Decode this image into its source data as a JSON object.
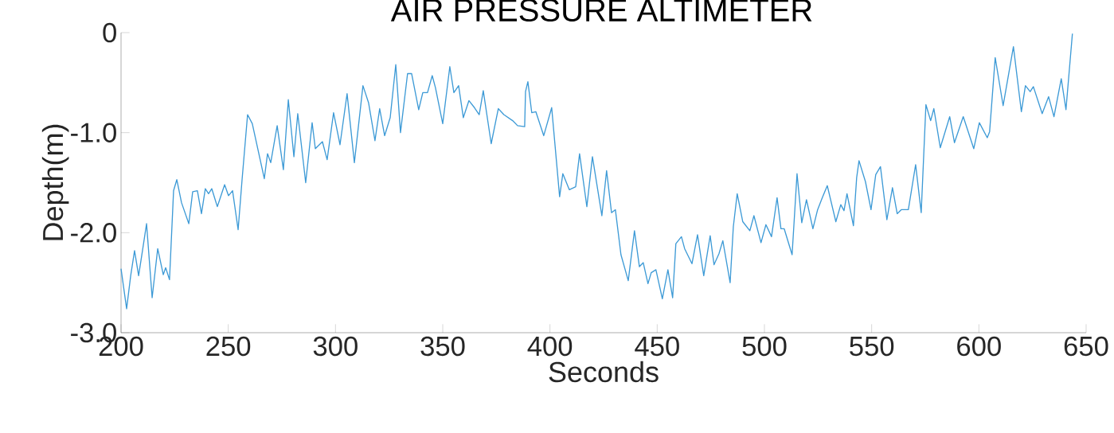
{
  "chart_data": {
    "type": "line",
    "title": "AIR PRESSURE ALTIMETER",
    "xlabel": "Seconds",
    "ylabel": "Depth(m)",
    "xlim": [
      200,
      650
    ],
    "ylim": [
      -3,
      0
    ],
    "xticks": [
      200,
      250,
      300,
      350,
      400,
      450,
      500,
      550,
      600,
      650
    ],
    "yticks": [
      {
        "value": -3,
        "label": "-3.0"
      },
      {
        "value": -2,
        "label": "-2.0"
      },
      {
        "value": -1,
        "label": "-1.0"
      },
      0
    ],
    "grid": false,
    "marker": "none",
    "line_style": "solid",
    "series": [
      {
        "color": "#3d9ad6",
        "x": [
          200,
          202.6,
          204.5,
          206.3,
          208.2,
          210.0,
          211.9,
          214.5,
          217.1,
          219.7,
          220.8,
          222.6,
          224.5,
          226.0,
          228.2,
          231.6,
          233.4,
          235.6,
          237.5,
          239.3,
          240.8,
          242.3,
          244.9,
          248.3,
          250.1,
          252.0,
          254.6,
          256.4,
          259.0,
          261.2,
          266.8,
          268.3,
          269.8,
          272.8,
          275.7,
          278.0,
          280.6,
          282.4,
          286.1,
          289.1,
          290.6,
          293.9,
          296.1,
          299.1,
          302.1,
          305.4,
          308.8,
          312.8,
          315.4,
          318.4,
          320.6,
          322.9,
          325.5,
          328.1,
          330.3,
          333.6,
          335.5,
          338.8,
          340.7,
          342.9,
          345.1,
          346.6,
          350.0,
          353.3,
          355.2,
          357.4,
          359.6,
          362.2,
          364.8,
          367.0,
          368.9,
          372.6,
          375.9,
          378.5,
          382.6,
          384.9,
          388.2,
          388.6,
          389.7,
          391.5,
          393.4,
          397.1,
          400.8,
          404.5,
          406.0,
          409.0,
          412.0,
          413.8,
          417.2,
          419.8,
          424.2,
          426.4,
          428.7,
          430.5,
          433.1,
          436.5,
          439.4,
          441.7,
          443.5,
          445.7,
          447.2,
          449.4,
          452.4,
          455.0,
          457.2,
          458.7,
          461.3,
          462.8,
          466.2,
          468.8,
          471.7,
          474.7,
          476.5,
          478.8,
          480.6,
          484.0,
          485.5,
          487.3,
          489.9,
          493.2,
          495.1,
          498.4,
          500.7,
          503.3,
          505.9,
          507.7,
          509.2,
          512.9,
          515.2,
          517.4,
          519.6,
          522.6,
          524.8,
          527.0,
          529.3,
          533.3,
          535.6,
          537.1,
          538.5,
          541.5,
          543.0,
          544.1,
          547.1,
          549.7,
          551.9,
          554.1,
          557.1,
          559.7,
          561.9,
          563.8,
          567.1,
          570.5,
          573.1,
          575.3,
          577.5,
          579.0,
          582.0,
          586.4,
          588.6,
          592.7,
          597.6,
          600.2,
          603.9,
          605.0,
          607.6,
          611.3,
          616.1,
          619.8,
          621.7,
          623.9,
          625.4,
          629.5,
          632.5,
          635.0,
          638.4,
          640.6,
          643.6
        ],
        "values": [
          -2.36,
          -2.76,
          -2.43,
          -2.18,
          -2.43,
          -2.18,
          -1.91,
          -2.65,
          -2.16,
          -2.42,
          -2.35,
          -2.47,
          -1.58,
          -1.47,
          -1.7,
          -1.91,
          -1.59,
          -1.58,
          -1.81,
          -1.56,
          -1.61,
          -1.56,
          -1.74,
          -1.52,
          -1.63,
          -1.58,
          -1.97,
          -1.48,
          -0.82,
          -0.91,
          -1.46,
          -1.21,
          -1.3,
          -0.93,
          -1.37,
          -0.67,
          -1.24,
          -0.81,
          -1.5,
          -0.9,
          -1.16,
          -1.09,
          -1.27,
          -0.8,
          -1.12,
          -0.61,
          -1.3,
          -0.53,
          -0.7,
          -1.08,
          -0.76,
          -1.03,
          -0.85,
          -0.32,
          -1.0,
          -0.41,
          -0.41,
          -0.77,
          -0.6,
          -0.6,
          -0.43,
          -0.55,
          -0.91,
          -0.34,
          -0.6,
          -0.53,
          -0.85,
          -0.68,
          -0.75,
          -0.82,
          -0.58,
          -1.11,
          -0.76,
          -0.82,
          -0.88,
          -0.93,
          -0.94,
          -0.59,
          -0.49,
          -0.8,
          -0.79,
          -1.03,
          -0.75,
          -1.64,
          -1.41,
          -1.57,
          -1.54,
          -1.21,
          -1.74,
          -1.24,
          -1.83,
          -1.38,
          -1.8,
          -1.77,
          -2.22,
          -2.48,
          -1.98,
          -2.34,
          -2.3,
          -2.51,
          -2.4,
          -2.37,
          -2.66,
          -2.37,
          -2.65,
          -2.11,
          -2.04,
          -2.16,
          -2.31,
          -2.02,
          -2.43,
          -2.03,
          -2.32,
          -2.21,
          -2.08,
          -2.5,
          -1.94,
          -1.61,
          -1.89,
          -1.98,
          -1.83,
          -2.1,
          -1.92,
          -2.04,
          -1.65,
          -1.96,
          -1.96,
          -2.22,
          -1.41,
          -1.9,
          -1.67,
          -1.96,
          -1.77,
          -1.65,
          -1.53,
          -1.89,
          -1.72,
          -1.78,
          -1.61,
          -1.93,
          -1.45,
          -1.28,
          -1.49,
          -1.77,
          -1.42,
          -1.34,
          -1.87,
          -1.55,
          -1.81,
          -1.77,
          -1.77,
          -1.32,
          -1.8,
          -0.72,
          -0.88,
          -0.76,
          -1.15,
          -0.84,
          -1.1,
          -0.84,
          -1.16,
          -0.9,
          -1.05,
          -0.99,
          -0.25,
          -0.73,
          -0.14,
          -0.79,
          -0.53,
          -0.59,
          -0.54,
          -0.81,
          -0.64,
          -0.84,
          -0.46,
          -0.77,
          -0.01
        ]
      }
    ]
  }
}
